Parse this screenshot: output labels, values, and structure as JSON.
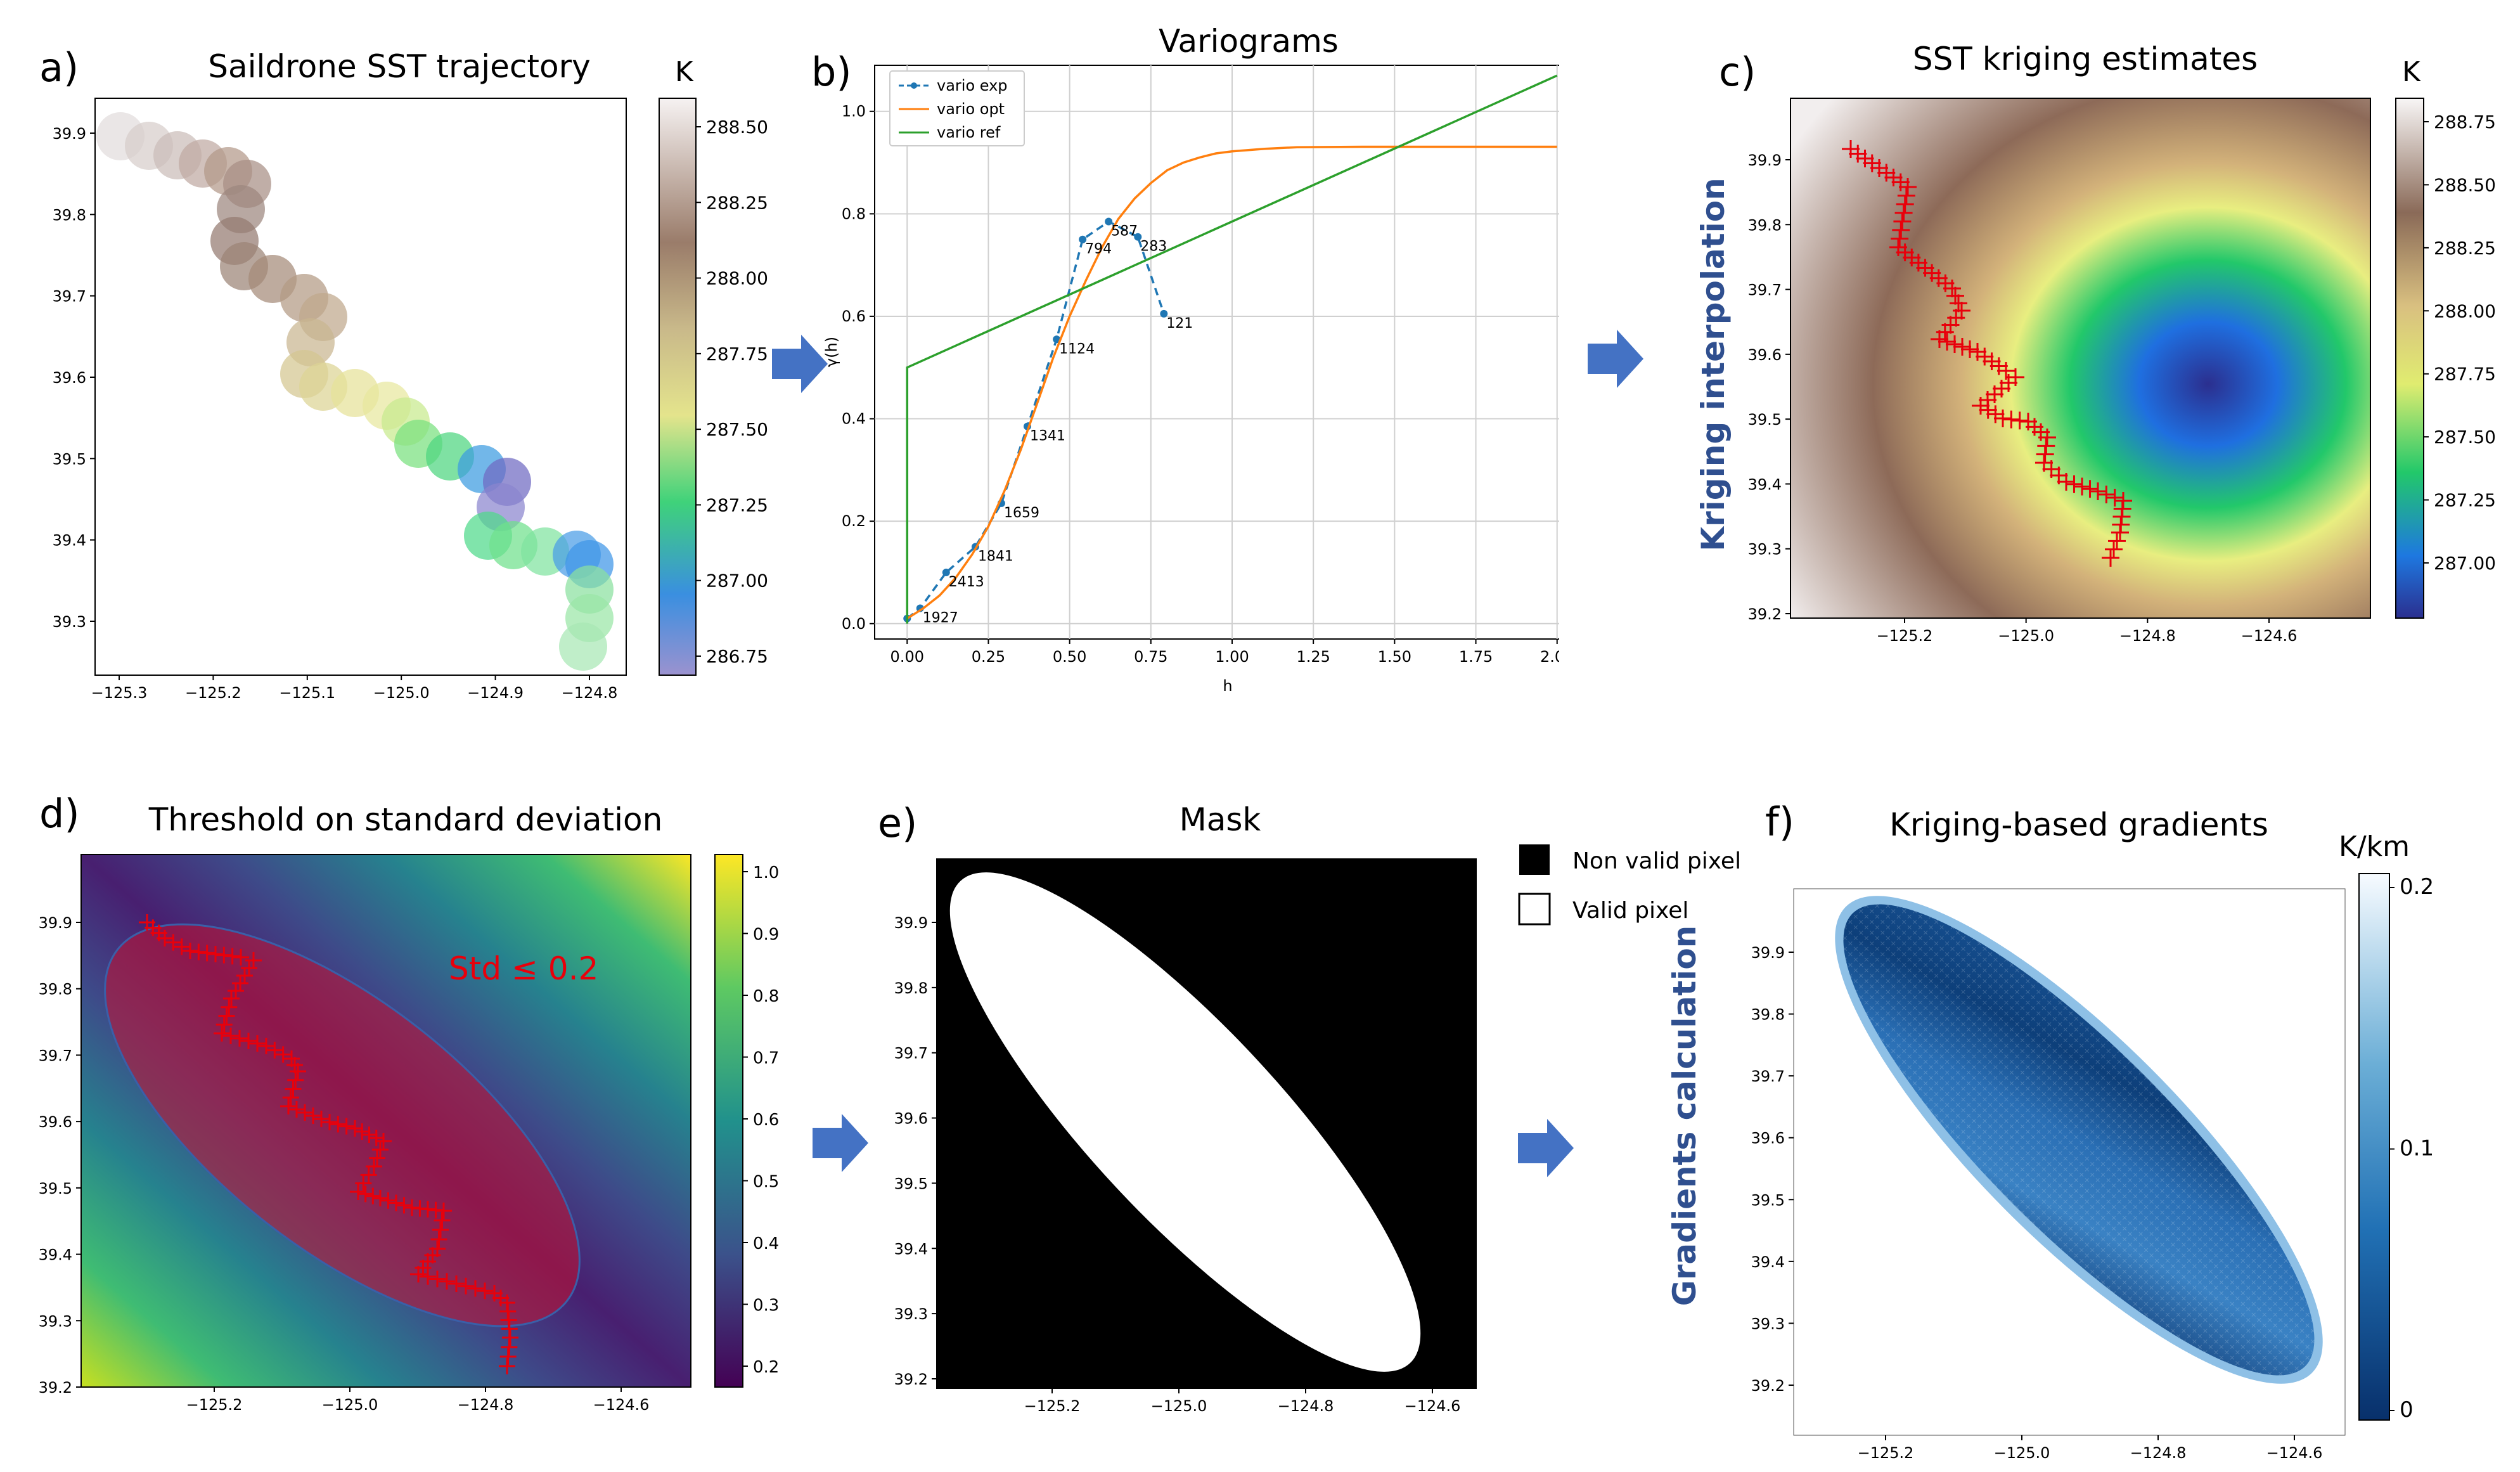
{
  "colors": {
    "arrow": "#4472c4",
    "title_blue": "#2f4f8f",
    "red": "#e8000b"
  },
  "chart_data": [
    {
      "id": "a",
      "type": "scatter",
      "panel_label": "a)",
      "title": "Saildrone SST trajectory",
      "x_ticks": [
        "−125.3",
        "−125.2",
        "−125.1",
        "−125.0",
        "−124.9",
        "−124.8"
      ],
      "y_ticks": [
        "39.9",
        "39.8",
        "39.7",
        "39.6",
        "39.5",
        "39.4",
        "39.3"
      ],
      "colorbar": {
        "label": "K",
        "ticks": [
          "288.50",
          "288.25",
          "288.00",
          "287.75",
          "287.50",
          "287.25",
          "287.00",
          "286.75"
        ]
      }
    },
    {
      "id": "b",
      "type": "line",
      "panel_label": "b)",
      "title": "Variograms",
      "xlabel": "h",
      "ylabel": "γ(h)",
      "x_ticks": [
        "0.00",
        "0.25",
        "0.50",
        "0.75",
        "1.00",
        "1.25",
        "1.50",
        "1.75",
        "2.00"
      ],
      "y_ticks": [
        "0.0",
        "0.2",
        "0.4",
        "0.6",
        "0.8",
        "1.0"
      ],
      "xlim": [
        -0.1,
        2.1
      ],
      "ylim": [
        -0.03,
        1.09
      ],
      "legend": [
        "vario exp",
        "vario opt",
        "vario ref"
      ],
      "series": [
        {
          "name": "vario exp",
          "x": [
            0.0,
            0.04,
            0.12,
            0.21,
            0.29,
            0.37,
            0.46,
            0.54,
            0.62,
            0.71,
            0.79
          ],
          "y": [
            0.01,
            0.03,
            0.1,
            0.15,
            0.235,
            0.385,
            0.555,
            0.75,
            0.785,
            0.755,
            0.605
          ]
        },
        {
          "name": "vario opt",
          "x": [
            0,
            0.05,
            0.1,
            0.15,
            0.2,
            0.25,
            0.3,
            0.35,
            0.4,
            0.45,
            0.5,
            0.55,
            0.6,
            0.65,
            0.7,
            0.75,
            0.8,
            0.85,
            0.9,
            0.95,
            1.0,
            1.1,
            1.2,
            1.4,
            1.6,
            1.8,
            2.0
          ],
          "y": [
            0.01,
            0.03,
            0.055,
            0.09,
            0.135,
            0.19,
            0.26,
            0.34,
            0.43,
            0.52,
            0.6,
            0.67,
            0.735,
            0.79,
            0.83,
            0.86,
            0.885,
            0.9,
            0.91,
            0.918,
            0.922,
            0.927,
            0.93,
            0.931,
            0.931,
            0.931,
            0.931
          ]
        },
        {
          "name": "vario ref",
          "x": [
            0,
            0,
            2.0
          ],
          "y": [
            0.0,
            0.5,
            1.07
          ]
        }
      ],
      "point_labels": [
        "1927",
        "2413",
        "1841",
        "1659",
        "1341",
        "1124",
        "794",
        "587",
        "283",
        "121"
      ]
    },
    {
      "id": "c",
      "type": "heatmap",
      "panel_label": "c)",
      "title": "SST kriging estimates",
      "side_label": "Kriging interpolation",
      "x_ticks": [
        "−125.2",
        "−125.0",
        "−124.8",
        "−124.6"
      ],
      "y_ticks": [
        "39.9",
        "39.8",
        "39.7",
        "39.6",
        "39.5",
        "39.4",
        "39.3",
        "39.2"
      ],
      "colorbar": {
        "label": "K",
        "ticks": [
          "288.75",
          "288.50",
          "288.25",
          "288.00",
          "287.75",
          "287.50",
          "287.25",
          "287.00"
        ]
      }
    },
    {
      "id": "d",
      "type": "heatmap",
      "panel_label": "d)",
      "title": "Threshold on standard deviation",
      "annotation": "Std ≤ 0.2",
      "x_ticks": [
        "−125.2",
        "−125.0",
        "−124.8",
        "−124.6"
      ],
      "y_ticks": [
        "39.9",
        "39.8",
        "39.7",
        "39.6",
        "39.5",
        "39.4",
        "39.3",
        "39.2"
      ],
      "colorbar": {
        "ticks": [
          "1.0",
          "0.9",
          "0.8",
          "0.7",
          "0.6",
          "0.5",
          "0.4",
          "0.3",
          "0.2"
        ]
      }
    },
    {
      "id": "e",
      "type": "heatmap",
      "panel_label": "e)",
      "title": "Mask",
      "legend": [
        "Non valid pixel",
        "Valid pixel"
      ],
      "x_ticks": [
        "−125.2",
        "−125.0",
        "−124.8",
        "−124.6"
      ],
      "y_ticks": [
        "39.9",
        "39.8",
        "39.7",
        "39.6",
        "39.5",
        "39.4",
        "39.3",
        "39.2"
      ]
    },
    {
      "id": "f",
      "type": "heatmap",
      "panel_label": "f)",
      "title": "Kriging-based gradients",
      "side_label": "Gradients calculation",
      "x_ticks": [
        "−125.2",
        "−125.0",
        "−124.8",
        "−124.6"
      ],
      "y_ticks": [
        "39.9",
        "39.8",
        "39.7",
        "39.6",
        "39.5",
        "39.4",
        "39.3",
        "39.2"
      ],
      "colorbar": {
        "label": "K/km",
        "ticks": [
          "0.2",
          "0.1",
          "0"
        ]
      }
    }
  ]
}
